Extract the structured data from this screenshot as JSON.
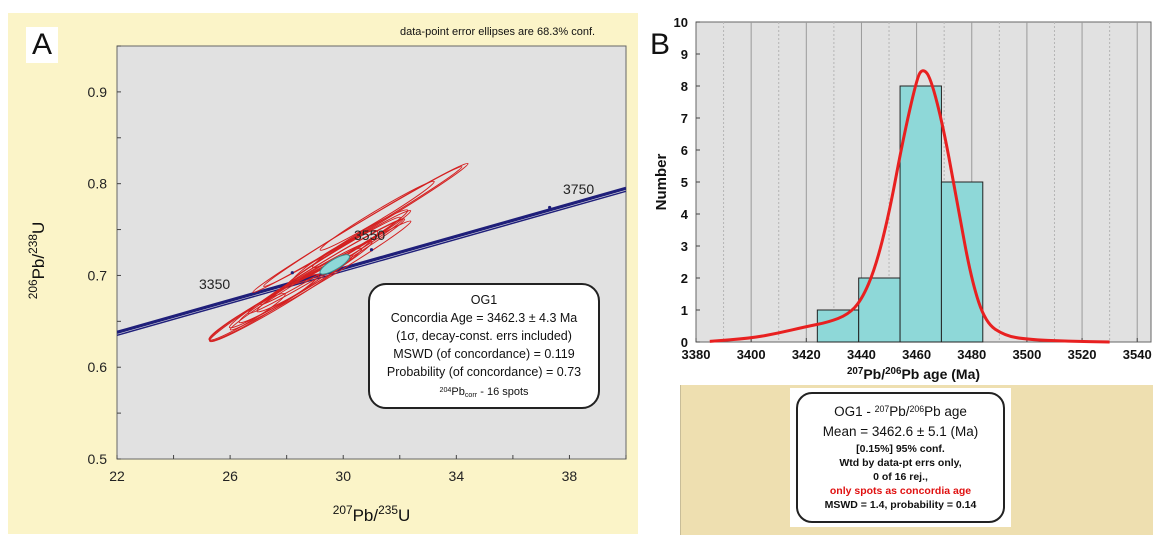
{
  "panel_a": {
    "letter": "A",
    "note": "data-point error ellipses are 68.3% conf.",
    "ylabel": {
      "sup": "206",
      "main": "Pb/",
      "sup2": "238",
      "main2": "U"
    },
    "xlabel": {
      "sup": "207",
      "main": "Pb/",
      "sup2": "235",
      "main2": "U"
    },
    "box": {
      "title": "OG1",
      "age": "Concordia Age = 3462.3 ± 4.3 Ma",
      "errs": "(1σ, decay-const. errs included)",
      "mswd": "MSWD (of concordance) = 0.119",
      "prob": "Probability (of concordance) = 0.73",
      "spots_sup": "204",
      "spots_main": "Pb",
      "spots_sub": "corr",
      "spots_tail": " - 16 spots"
    }
  },
  "panel_b": {
    "letter": "B",
    "ylabel": "Number",
    "xlabel": {
      "sup": "207",
      "main": "Pb/",
      "sup2": "206",
      "main2": "Pb age (Ma)"
    },
    "box": {
      "title": "OG1 - ",
      "title_sup1": "207",
      "title_mid": "Pb/",
      "title_sup2": "206",
      "title_end": "Pb age",
      "mean": "Mean = 3462.6 ± 5.1 (Ma)",
      "conf": "[0.15%]  95% conf.",
      "wtd": "Wtd by data-pt errs only,",
      "rej": "0 of 16 rej.,",
      "note": "only spots as concordia age",
      "mswd": "MSWD = 1.4, probability = 0.14"
    }
  },
  "colors": {
    "yellow_bg": "#fbf4c8",
    "plot_bg": "#e1e1e1",
    "concordia": "#1f1f7a",
    "ellipse": "#d42020",
    "fill": "#8ed8d8",
    "curve": "#e82020",
    "tan_bg": "#eedfb0",
    "red_text": "#e01010"
  },
  "chart_data": [
    {
      "type": "scatter",
      "title": "",
      "xlabel": "207Pb/235U",
      "ylabel": "206Pb/238U",
      "xlim": [
        22,
        40
      ],
      "ylim": [
        0.5,
        0.95
      ],
      "x_ticks": [
        22,
        26,
        30,
        34,
        38
      ],
      "y_ticks": [
        0.5,
        0.6,
        0.7,
        0.8,
        0.9
      ],
      "concordia_ticks": [
        {
          "label": "3350",
          "x": 28.2,
          "y": 0.703
        },
        {
          "label": "3550",
          "x": 31.0,
          "y": 0.728
        },
        {
          "label": "3750",
          "x": 37.3,
          "y": 0.774
        }
      ],
      "ellipses": [
        {
          "x": 30.5,
          "y": 0.75,
          "a": 4.4,
          "b": 0.09
        },
        {
          "x": 30.8,
          "y": 0.755,
          "a": 4.3,
          "b": 0.1
        },
        {
          "x": 29.2,
          "y": 0.7,
          "a": 3.8,
          "b": 0.11
        },
        {
          "x": 28.5,
          "y": 0.69,
          "a": 3.0,
          "b": 0.12
        },
        {
          "x": 27.8,
          "y": 0.675,
          "a": 3.0,
          "b": 0.13
        },
        {
          "x": 27.2,
          "y": 0.665,
          "a": 2.3,
          "b": 0.12
        },
        {
          "x": 29.6,
          "y": 0.715,
          "a": 3.0,
          "b": 0.08
        },
        {
          "x": 30.2,
          "y": 0.73,
          "a": 2.6,
          "b": 0.09
        },
        {
          "x": 29.4,
          "y": 0.71,
          "a": 3.3,
          "b": 0.1
        },
        {
          "x": 28.8,
          "y": 0.695,
          "a": 2.2,
          "b": 0.11
        },
        {
          "x": 30.0,
          "y": 0.726,
          "a": 2.4,
          "b": 0.08
        },
        {
          "x": 28.0,
          "y": 0.68,
          "a": 2.0,
          "b": 0.1
        },
        {
          "x": 31.2,
          "y": 0.765,
          "a": 2.4,
          "b": 0.09
        },
        {
          "x": 26.6,
          "y": 0.655,
          "a": 1.6,
          "b": 0.1
        },
        {
          "x": 30.6,
          "y": 0.74,
          "a": 2.0,
          "b": 0.1
        },
        {
          "x": 29.7,
          "y": 0.72,
          "a": 1.8,
          "b": 0.14
        }
      ],
      "concordia_ellipse": {
        "x": 29.7,
        "y": 0.712,
        "a": 0.6,
        "b": 0.05
      }
    },
    {
      "type": "bar",
      "title": "",
      "xlabel": "207Pb/206Pb age (Ma)",
      "ylabel": "Number",
      "xlim": [
        3380,
        3545
      ],
      "ylim": [
        0,
        10
      ],
      "x_ticks": [
        3380,
        3400,
        3420,
        3440,
        3460,
        3480,
        3500,
        3520,
        3540
      ],
      "y_ticks": [
        0,
        1,
        2,
        3,
        4,
        5,
        6,
        7,
        8,
        9,
        10
      ],
      "bins": [
        {
          "from": 3424,
          "to": 3439,
          "count": 1
        },
        {
          "from": 3439,
          "to": 3454,
          "count": 2
        },
        {
          "from": 3454,
          "to": 3469,
          "count": 8
        },
        {
          "from": 3469,
          "to": 3484,
          "count": 5
        }
      ],
      "curve": [
        [
          3385,
          0.02
        ],
        [
          3400,
          0.12
        ],
        [
          3410,
          0.28
        ],
        [
          3420,
          0.48
        ],
        [
          3428,
          0.62
        ],
        [
          3435,
          0.85
        ],
        [
          3440,
          1.3
        ],
        [
          3445,
          2.3
        ],
        [
          3450,
          4.0
        ],
        [
          3455,
          6.3
        ],
        [
          3460,
          8.2
        ],
        [
          3462,
          8.55
        ],
        [
          3465,
          8.3
        ],
        [
          3470,
          6.6
        ],
        [
          3475,
          4.2
        ],
        [
          3480,
          1.9
        ],
        [
          3485,
          0.6
        ],
        [
          3492,
          0.2
        ],
        [
          3500,
          0.08
        ],
        [
          3515,
          0.02
        ],
        [
          3530,
          0.0
        ]
      ]
    }
  ]
}
